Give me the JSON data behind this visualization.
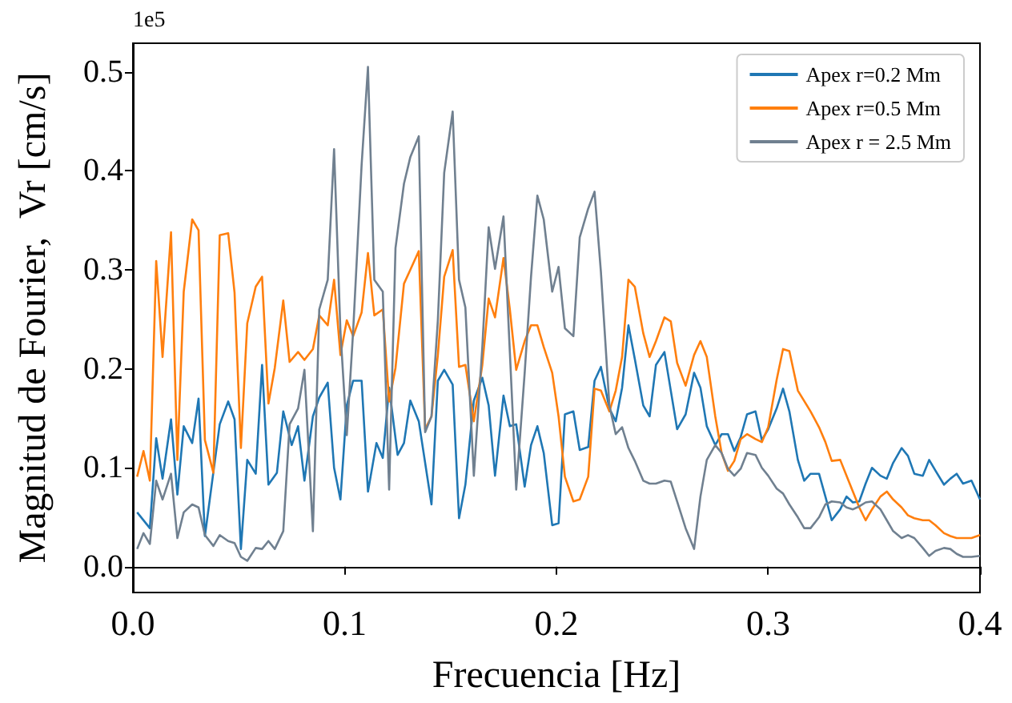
{
  "chart_data": {
    "type": "line",
    "xlabel": "Frecuencia [Hz]",
    "ylabel": "Magnitud de Fourier,  Vr [cm/s]",
    "annotations": [
      "1e5"
    ],
    "xlim": [
      0,
      0.4
    ],
    "xticks": [
      {
        "value": 0,
        "label": "0.0"
      },
      0.1,
      0.2,
      0.3,
      0.4
    ],
    "ylim": [
      -0.026,
      0.529
    ],
    "yticks": [
      {
        "value": 0,
        "label": "0.0"
      },
      0.1,
      0.2,
      0.3,
      0.4,
      0.5
    ],
    "legend": "top right",
    "marker": "none",
    "series": [
      {
        "name": "Apex r=0.2 Mm",
        "color": "#1f77b4",
        "x": [
          0.002,
          0.008,
          0.011,
          0.014,
          0.018,
          0.021,
          0.024,
          0.028,
          0.031,
          0.034,
          0.041,
          0.045,
          0.048,
          0.051,
          0.054,
          0.058,
          0.061,
          0.064,
          0.068,
          0.071,
          0.075,
          0.078,
          0.081,
          0.085,
          0.088,
          0.092,
          0.095,
          0.098,
          0.101,
          0.104,
          0.108,
          0.111,
          0.115,
          0.118,
          0.121,
          0.125,
          0.128,
          0.131,
          0.135,
          0.141,
          0.144,
          0.147,
          0.151,
          0.154,
          0.157,
          0.161,
          0.165,
          0.168,
          0.171,
          0.175,
          0.178,
          0.181,
          0.185,
          0.188,
          0.191,
          0.194,
          0.198,
          0.201,
          0.204,
          0.208,
          0.211,
          0.215,
          0.218,
          0.221,
          0.225,
          0.228,
          0.231,
          0.234,
          0.237,
          0.241,
          0.244,
          0.247,
          0.251,
          0.254,
          0.257,
          0.261,
          0.265,
          0.268,
          0.271,
          0.275,
          0.278,
          0.281,
          0.284,
          0.287,
          0.29,
          0.294,
          0.297,
          0.3,
          0.304,
          0.307,
          0.31,
          0.314,
          0.317,
          0.32,
          0.324,
          0.327,
          0.33,
          0.334,
          0.337,
          0.34,
          0.343,
          0.346,
          0.349,
          0.353,
          0.356,
          0.359,
          0.363,
          0.366,
          0.369,
          0.373,
          0.376,
          0.379,
          0.383,
          0.386,
          0.389,
          0.392,
          0.396,
          0.4
        ],
        "values": [
          0.055,
          0.039,
          0.13,
          0.089,
          0.149,
          0.073,
          0.142,
          0.125,
          0.17,
          0.031,
          0.144,
          0.167,
          0.149,
          0.018,
          0.108,
          0.094,
          0.204,
          0.083,
          0.095,
          0.157,
          0.123,
          0.142,
          0.087,
          0.152,
          0.171,
          0.186,
          0.1,
          0.068,
          0.163,
          0.188,
          0.188,
          0.076,
          0.125,
          0.11,
          0.181,
          0.113,
          0.125,
          0.168,
          0.147,
          0.063,
          0.188,
          0.199,
          0.184,
          0.049,
          0.083,
          0.168,
          0.191,
          0.163,
          0.092,
          0.173,
          0.142,
          0.144,
          0.081,
          0.123,
          0.142,
          0.115,
          0.042,
          0.044,
          0.154,
          0.157,
          0.118,
          0.121,
          0.188,
          0.202,
          0.16,
          0.147,
          0.181,
          0.244,
          0.21,
          0.163,
          0.152,
          0.204,
          0.217,
          0.178,
          0.139,
          0.154,
          0.196,
          0.181,
          0.142,
          0.123,
          0.134,
          0.134,
          0.117,
          0.131,
          0.154,
          0.157,
          0.128,
          0.139,
          0.16,
          0.18,
          0.157,
          0.108,
          0.087,
          0.094,
          0.094,
          0.071,
          0.047,
          0.058,
          0.071,
          0.065,
          0.066,
          0.084,
          0.1,
          0.092,
          0.089,
          0.105,
          0.12,
          0.112,
          0.094,
          0.092,
          0.108,
          0.097,
          0.083,
          0.089,
          0.094,
          0.084,
          0.087,
          0.068
        ]
      },
      {
        "name": "Apex r=0.5 Mm",
        "color": "#ff7f0e",
        "x": [
          0.002,
          0.005,
          0.008,
          0.011,
          0.014,
          0.018,
          0.021,
          0.024,
          0.028,
          0.031,
          0.034,
          0.038,
          0.041,
          0.045,
          0.048,
          0.051,
          0.054,
          0.058,
          0.061,
          0.064,
          0.067,
          0.071,
          0.074,
          0.078,
          0.081,
          0.085,
          0.088,
          0.092,
          0.095,
          0.098,
          0.101,
          0.104,
          0.108,
          0.111,
          0.114,
          0.118,
          0.121,
          0.124,
          0.128,
          0.135,
          0.138,
          0.141,
          0.144,
          0.147,
          0.151,
          0.154,
          0.157,
          0.161,
          0.165,
          0.168,
          0.171,
          0.175,
          0.178,
          0.181,
          0.185,
          0.188,
          0.191,
          0.194,
          0.198,
          0.201,
          0.204,
          0.208,
          0.211,
          0.215,
          0.218,
          0.221,
          0.225,
          0.228,
          0.231,
          0.234,
          0.237,
          0.241,
          0.244,
          0.247,
          0.251,
          0.254,
          0.257,
          0.261,
          0.265,
          0.268,
          0.271,
          0.275,
          0.278,
          0.281,
          0.284,
          0.287,
          0.29,
          0.294,
          0.297,
          0.3,
          0.304,
          0.307,
          0.31,
          0.314,
          0.32,
          0.324,
          0.327,
          0.33,
          0.334,
          0.337,
          0.34,
          0.343,
          0.346,
          0.349,
          0.353,
          0.356,
          0.359,
          0.363,
          0.366,
          0.369,
          0.373,
          0.376,
          0.379,
          0.383,
          0.386,
          0.389,
          0.392,
          0.396,
          0.4
        ],
        "values": [
          0.091,
          0.117,
          0.087,
          0.309,
          0.212,
          0.338,
          0.108,
          0.278,
          0.351,
          0.34,
          0.128,
          0.095,
          0.335,
          0.337,
          0.277,
          0.12,
          0.246,
          0.283,
          0.293,
          0.165,
          0.201,
          0.269,
          0.207,
          0.217,
          0.209,
          0.22,
          0.254,
          0.244,
          0.29,
          0.214,
          0.249,
          0.233,
          0.257,
          0.317,
          0.254,
          0.26,
          0.167,
          0.201,
          0.286,
          0.319,
          0.139,
          0.152,
          0.214,
          0.293,
          0.32,
          0.202,
          0.204,
          0.147,
          0.204,
          0.271,
          0.252,
          0.312,
          0.26,
          0.199,
          0.228,
          0.244,
          0.244,
          0.222,
          0.196,
          0.152,
          0.091,
          0.066,
          0.068,
          0.091,
          0.18,
          0.178,
          0.157,
          0.178,
          0.212,
          0.29,
          0.283,
          0.236,
          0.212,
          0.228,
          0.252,
          0.248,
          0.206,
          0.183,
          0.214,
          0.228,
          0.212,
          0.152,
          0.115,
          0.097,
          0.107,
          0.129,
          0.134,
          0.129,
          0.126,
          0.141,
          0.189,
          0.22,
          0.218,
          0.178,
          0.157,
          0.141,
          0.126,
          0.107,
          0.108,
          0.092,
          0.076,
          0.06,
          0.047,
          0.058,
          0.071,
          0.076,
          0.068,
          0.06,
          0.052,
          0.049,
          0.047,
          0.047,
          0.042,
          0.034,
          0.031,
          0.029,
          0.029,
          0.029,
          0.032
        ]
      },
      {
        "name": "Apex r = 2.5 Mm",
        "color": "#708090",
        "x": [
          0.002,
          0.005,
          0.008,
          0.011,
          0.014,
          0.018,
          0.021,
          0.024,
          0.028,
          0.031,
          0.034,
          0.038,
          0.041,
          0.045,
          0.048,
          0.051,
          0.054,
          0.058,
          0.061,
          0.064,
          0.067,
          0.071,
          0.074,
          0.078,
          0.081,
          0.085,
          0.088,
          0.092,
          0.095,
          0.098,
          0.101,
          0.104,
          0.108,
          0.111,
          0.114,
          0.118,
          0.121,
          0.124,
          0.128,
          0.131,
          0.135,
          0.138,
          0.141,
          0.144,
          0.147,
          0.151,
          0.154,
          0.157,
          0.161,
          0.165,
          0.168,
          0.171,
          0.175,
          0.178,
          0.181,
          0.185,
          0.188,
          0.191,
          0.194,
          0.198,
          0.201,
          0.204,
          0.208,
          0.211,
          0.215,
          0.218,
          0.221,
          0.225,
          0.228,
          0.231,
          0.234,
          0.237,
          0.241,
          0.244,
          0.247,
          0.251,
          0.254,
          0.257,
          0.261,
          0.265,
          0.268,
          0.271,
          0.275,
          0.278,
          0.281,
          0.284,
          0.287,
          0.29,
          0.294,
          0.297,
          0.3,
          0.304,
          0.307,
          0.31,
          0.314,
          0.317,
          0.32,
          0.324,
          0.327,
          0.33,
          0.334,
          0.337,
          0.34,
          0.343,
          0.346,
          0.349,
          0.353,
          0.356,
          0.359,
          0.363,
          0.366,
          0.369,
          0.373,
          0.376,
          0.379,
          0.383,
          0.386,
          0.389,
          0.392,
          0.396,
          0.4
        ],
        "values": [
          0.018,
          0.034,
          0.023,
          0.087,
          0.068,
          0.094,
          0.029,
          0.055,
          0.063,
          0.06,
          0.032,
          0.021,
          0.032,
          0.026,
          0.024,
          0.01,
          0.006,
          0.019,
          0.018,
          0.026,
          0.018,
          0.036,
          0.144,
          0.16,
          0.199,
          0.036,
          0.26,
          0.29,
          0.422,
          0.238,
          0.133,
          0.238,
          0.406,
          0.505,
          0.29,
          0.278,
          0.078,
          0.322,
          0.387,
          0.414,
          0.435,
          0.136,
          0.152,
          0.249,
          0.398,
          0.46,
          0.29,
          0.262,
          0.092,
          0.222,
          0.343,
          0.301,
          0.354,
          0.217,
          0.078,
          0.196,
          0.293,
          0.375,
          0.351,
          0.278,
          0.303,
          0.241,
          0.233,
          0.333,
          0.362,
          0.379,
          0.298,
          0.163,
          0.134,
          0.141,
          0.12,
          0.107,
          0.087,
          0.084,
          0.084,
          0.087,
          0.086,
          0.066,
          0.039,
          0.018,
          0.071,
          0.108,
          0.123,
          0.115,
          0.099,
          0.092,
          0.099,
          0.115,
          0.113,
          0.1,
          0.092,
          0.079,
          0.074,
          0.063,
          0.05,
          0.039,
          0.039,
          0.05,
          0.063,
          0.066,
          0.065,
          0.06,
          0.058,
          0.061,
          0.065,
          0.066,
          0.058,
          0.047,
          0.036,
          0.029,
          0.032,
          0.029,
          0.019,
          0.011,
          0.016,
          0.019,
          0.018,
          0.013,
          0.01,
          0.01,
          0.011
        ]
      }
    ]
  }
}
